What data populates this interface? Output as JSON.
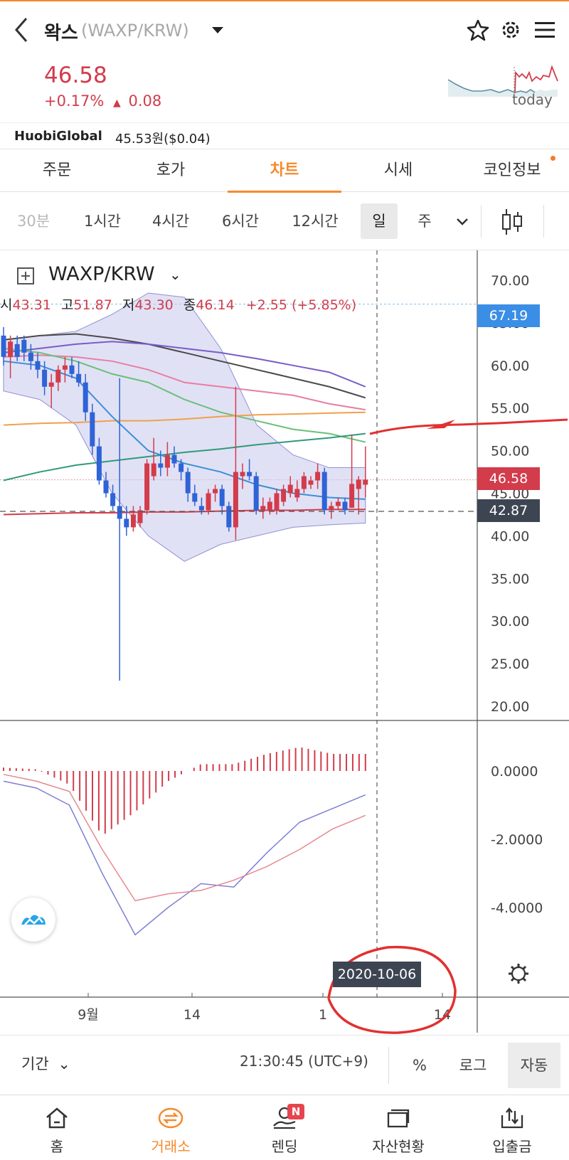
{
  "header": {
    "title": "왁스",
    "pair": "(WAXP/KRW)",
    "sparkline_label": "today"
  },
  "price": {
    "current": "46.58",
    "change_pct": "+0.17%",
    "change_abs": "0.08"
  },
  "exchange": {
    "name": "HuobiGlobal",
    "price": "45.53원($0.04)"
  },
  "tabs": [
    {
      "label": "주문"
    },
    {
      "label": "호가"
    },
    {
      "label": "차트",
      "active": true
    },
    {
      "label": "시세"
    },
    {
      "label": "코인정보"
    }
  ],
  "intervals": [
    "30분",
    "1시간",
    "4시간",
    "6시간",
    "12시간",
    "일",
    "주"
  ],
  "active_interval": "일",
  "chart": {
    "symbol": "WAXP/KRW",
    "ohlc": {
      "open_label": "시",
      "open": "43.31",
      "high_label": "고",
      "high": "51.87",
      "low_label": "저",
      "low": "43.30",
      "close_label": "종",
      "close": "46.14",
      "change": "+2.55 (+5.85%)"
    },
    "price_ticks": [
      "70.00",
      "65.00",
      "60.00",
      "55.00",
      "50.00",
      "45.00",
      "40.00",
      "35.00",
      "30.00",
      "25.00",
      "20.00"
    ],
    "tags": {
      "high_line": "67.19",
      "current": "46.58",
      "crosshair": "42.87"
    },
    "macd_ticks": [
      "0.0000",
      "-2.0000",
      "-4.0000"
    ],
    "x_ticks": [
      "9월",
      "14",
      "1",
      "14"
    ],
    "crosshair_date": "2020-10-06",
    "colors": {
      "up": "#d23c4b",
      "down": "#2f63d6",
      "accent": "#f58a2b"
    }
  },
  "chart_data": {
    "type": "candlestick",
    "symbol": "WAXP/KRW",
    "interval": "일",
    "y_range": [
      18,
      72
    ],
    "candles": [
      {
        "o": 63.5,
        "h": 64.5,
        "l": 60.0,
        "c": 61.0
      },
      {
        "o": 61.0,
        "h": 63.5,
        "l": 58.5,
        "c": 62.8
      },
      {
        "o": 62.5,
        "h": 63.5,
        "l": 60.5,
        "c": 61.0
      },
      {
        "o": 63.0,
        "h": 63.5,
        "l": 60.5,
        "c": 61.5
      },
      {
        "o": 61.5,
        "h": 62.5,
        "l": 59.5,
        "c": 60.5
      },
      {
        "o": 60.5,
        "h": 61.5,
        "l": 58.5,
        "c": 59.5
      },
      {
        "o": 59.5,
        "h": 60.5,
        "l": 56.5,
        "c": 57.5
      },
      {
        "o": 57.5,
        "h": 59.0,
        "l": 55.0,
        "c": 58.0
      },
      {
        "o": 58.0,
        "h": 60.0,
        "l": 57.0,
        "c": 59.5
      },
      {
        "o": 59.5,
        "h": 61.0,
        "l": 58.0,
        "c": 60.0
      },
      {
        "o": 60.0,
        "h": 61.0,
        "l": 58.5,
        "c": 59.0
      },
      {
        "o": 59.0,
        "h": 60.5,
        "l": 57.5,
        "c": 58.0
      },
      {
        "o": 58.0,
        "h": 59.0,
        "l": 53.5,
        "c": 54.5
      },
      {
        "o": 54.5,
        "h": 55.5,
        "l": 49.5,
        "c": 50.5
      },
      {
        "o": 50.5,
        "h": 51.5,
        "l": 46.0,
        "c": 46.5
      },
      {
        "o": 46.5,
        "h": 47.5,
        "l": 44.5,
        "c": 45.0
      },
      {
        "o": 45.0,
        "h": 46.0,
        "l": 43.0,
        "c": 43.5
      },
      {
        "o": 43.5,
        "h": 58.5,
        "l": 23.0,
        "c": 42.0
      },
      {
        "o": 42.0,
        "h": 43.5,
        "l": 40.0,
        "c": 41.0
      },
      {
        "o": 41.0,
        "h": 43.5,
        "l": 40.5,
        "c": 42.5
      },
      {
        "o": 41.5,
        "h": 43.5,
        "l": 41.0,
        "c": 43.0
      },
      {
        "o": 43.0,
        "h": 49.0,
        "l": 42.5,
        "c": 48.5
      },
      {
        "o": 47.0,
        "h": 51.5,
        "l": 46.5,
        "c": 48.5
      },
      {
        "o": 48.5,
        "h": 50.0,
        "l": 47.0,
        "c": 48.0
      },
      {
        "o": 48.0,
        "h": 51.0,
        "l": 47.0,
        "c": 49.5
      },
      {
        "o": 49.5,
        "h": 50.5,
        "l": 48.0,
        "c": 48.5
      },
      {
        "o": 48.5,
        "h": 49.0,
        "l": 46.5,
        "c": 47.5
      },
      {
        "o": 47.5,
        "h": 48.0,
        "l": 44.0,
        "c": 45.0
      },
      {
        "o": 45.0,
        "h": 46.0,
        "l": 43.5,
        "c": 44.0
      },
      {
        "o": 43.5,
        "h": 44.5,
        "l": 42.5,
        "c": 43.0
      },
      {
        "o": 43.0,
        "h": 45.5,
        "l": 42.5,
        "c": 45.0
      },
      {
        "o": 45.0,
        "h": 46.0,
        "l": 44.0,
        "c": 45.5
      },
      {
        "o": 45.5,
        "h": 46.0,
        "l": 42.5,
        "c": 43.5
      },
      {
        "o": 43.5,
        "h": 44.0,
        "l": 40.5,
        "c": 41.0
      },
      {
        "o": 41.0,
        "h": 57.5,
        "l": 39.5,
        "c": 47.5
      },
      {
        "o": 47.0,
        "h": 48.5,
        "l": 45.5,
        "c": 47.5
      },
      {
        "o": 47.5,
        "h": 49.0,
        "l": 46.5,
        "c": 47.0
      },
      {
        "o": 47.0,
        "h": 47.5,
        "l": 42.5,
        "c": 43.0
      },
      {
        "o": 43.0,
        "h": 44.5,
        "l": 42.0,
        "c": 43.5
      },
      {
        "o": 43.0,
        "h": 44.5,
        "l": 42.5,
        "c": 44.0
      },
      {
        "o": 43.0,
        "h": 45.5,
        "l": 42.5,
        "c": 45.0
      },
      {
        "o": 44.0,
        "h": 46.0,
        "l": 43.5,
        "c": 45.5
      },
      {
        "o": 45.0,
        "h": 47.0,
        "l": 44.5,
        "c": 46.0
      },
      {
        "o": 44.5,
        "h": 46.5,
        "l": 44.0,
        "c": 45.5
      },
      {
        "o": 45.5,
        "h": 47.5,
        "l": 45.0,
        "c": 47.0
      },
      {
        "o": 46.0,
        "h": 47.0,
        "l": 45.5,
        "c": 46.5
      },
      {
        "o": 46.5,
        "h": 48.5,
        "l": 45.5,
        "c": 47.5
      },
      {
        "o": 47.5,
        "h": 48.0,
        "l": 42.5,
        "c": 43.0
      },
      {
        "o": 43.0,
        "h": 44.0,
        "l": 42.0,
        "c": 43.5
      },
      {
        "o": 43.5,
        "h": 44.5,
        "l": 43.0,
        "c": 44.0
      },
      {
        "o": 44.0,
        "h": 44.5,
        "l": 42.5,
        "c": 43.0
      },
      {
        "o": 43.3,
        "h": 51.9,
        "l": 43.3,
        "c": 46.1
      },
      {
        "o": 45.5,
        "h": 47.0,
        "l": 42.5,
        "c": 46.6
      },
      {
        "o": 46.0,
        "h": 50.5,
        "l": 44.5,
        "c": 46.6
      }
    ],
    "macd": [
      {
        "macd": -0.3,
        "signal": -0.1,
        "hist": 0.1
      },
      {
        "macd": -0.5,
        "signal": -0.3,
        "hist": 0.05
      },
      {
        "macd": -1.0,
        "signal": -0.6,
        "hist": -0.4
      },
      {
        "macd": -3.0,
        "signal": -2.3,
        "hist": -1.9
      },
      {
        "macd": -4.8,
        "signal": -3.8,
        "hist": -1.2
      },
      {
        "macd": -4.0,
        "signal": -3.6,
        "hist": -0.3
      },
      {
        "macd": -3.3,
        "signal": -3.5,
        "hist": 0.2
      },
      {
        "macd": -3.4,
        "signal": -3.2,
        "hist": 0.2
      },
      {
        "macd": -2.4,
        "signal": -2.8,
        "hist": 0.5
      },
      {
        "macd": -1.5,
        "signal": -2.3,
        "hist": 0.7
      },
      {
        "macd": -1.1,
        "signal": -1.7,
        "hist": 0.5
      },
      {
        "macd": -0.7,
        "signal": -1.3,
        "hist": 0.5
      }
    ],
    "ma_lines": [
      {
        "name": "MA-black",
        "color": "#4a4a4a",
        "values": [
          63,
          63.5,
          63.7,
          63.2,
          62.5,
          61.5,
          60.5,
          59.5,
          58.5,
          57.5,
          56.2
        ]
      },
      {
        "name": "MA-purple",
        "color": "#7a5cc9",
        "values": [
          61.5,
          62,
          62.5,
          62.8,
          62.5,
          62,
          61.5,
          60.8,
          60,
          59.2,
          57.5
        ]
      },
      {
        "name": "MA-pink",
        "color": "#e67fa5",
        "values": [
          61,
          61.2,
          61,
          60.5,
          59.5,
          58,
          57.5,
          57,
          56.5,
          55.5,
          54.8
        ]
      },
      {
        "name": "MA-lightgreen",
        "color": "#69c07a",
        "values": [
          62,
          61.5,
          60.5,
          59,
          58,
          56,
          54.5,
          53.5,
          52.5,
          52,
          51
        ]
      },
      {
        "name": "MA-orange",
        "color": "#f0a04b",
        "values": [
          53,
          53.2,
          53.3,
          53.5,
          53.5,
          53.7,
          54,
          54.2,
          54.3,
          54.4,
          54.5
        ]
      },
      {
        "name": "MA-green",
        "color": "#2f9a7a",
        "values": [
          46.5,
          47.5,
          48.3,
          48.8,
          49.3,
          49.8,
          50.2,
          50.7,
          51.1,
          51.5,
          52
        ]
      },
      {
        "name": "MA-blue",
        "color": "#3c8fd8",
        "values": [
          60.5,
          60,
          58.5,
          54,
          50,
          48.5,
          47.5,
          46,
          45,
          44.5,
          44.3
        ]
      },
      {
        "name": "MA-red",
        "color": "#d23c4b",
        "values": [
          42.5,
          42.6,
          42.7,
          42.7,
          42.8,
          42.8,
          42.9,
          43,
          43,
          43.1,
          43.1
        ]
      }
    ],
    "bollinger_upper": [
      63,
      63.5,
      64,
      66,
      68.5,
      68,
      62,
      53,
      49.5,
      48,
      48
    ],
    "bollinger_lower": [
      57,
      56,
      53,
      45,
      40,
      37,
      39,
      40,
      41,
      41.3,
      41.5
    ]
  },
  "footer": {
    "period_label": "기간",
    "clock": "21:30:45 (UTC+9)",
    "pct_btn": "%",
    "log_btn": "로그",
    "auto_btn": "자동"
  },
  "nav": [
    {
      "label": "홈",
      "icon": "home-icon"
    },
    {
      "label": "거래소",
      "icon": "exchange-icon",
      "active": true
    },
    {
      "label": "렌딩",
      "icon": "lending-icon",
      "badge": "N"
    },
    {
      "label": "자산현황",
      "icon": "wallet-icon"
    },
    {
      "label": "입출금",
      "icon": "deposit-icon"
    }
  ]
}
